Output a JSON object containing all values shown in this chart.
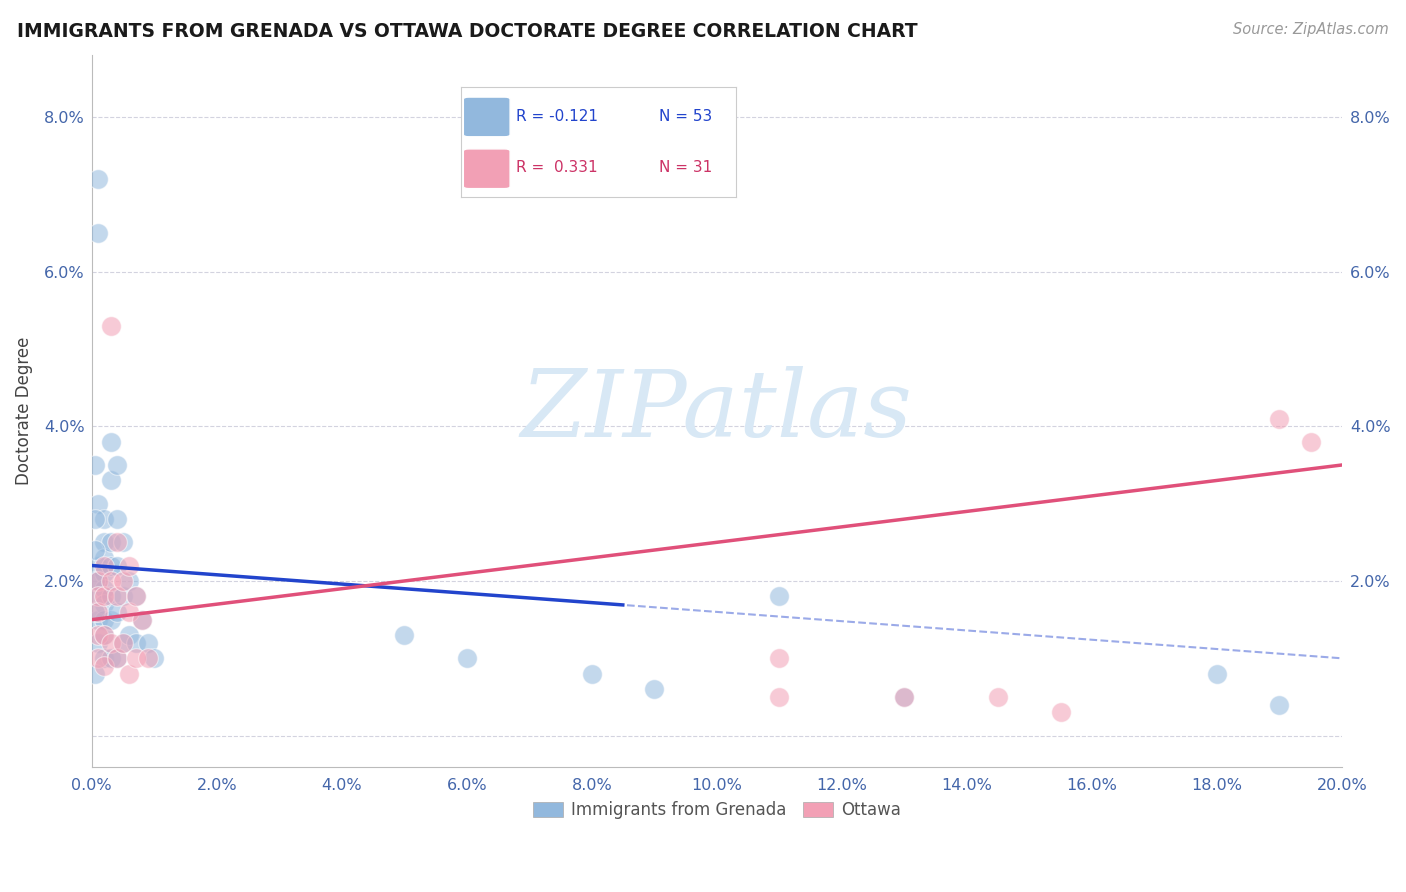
{
  "title": "IMMIGRANTS FROM GRENADA VS OTTAWA DOCTORATE DEGREE CORRELATION CHART",
  "source_text": "Source: ZipAtlas.com",
  "ylabel": "Doctorate Degree",
  "xlim": [
    0.0,
    0.2
  ],
  "ylim": [
    -0.004,
    0.088
  ],
  "xticks": [
    0.0,
    0.02,
    0.04,
    0.06,
    0.08,
    0.1,
    0.12,
    0.14,
    0.16,
    0.18,
    0.2
  ],
  "xticklabels": [
    "0.0%",
    "2.0%",
    "4.0%",
    "6.0%",
    "8.0%",
    "10.0%",
    "12.0%",
    "14.0%",
    "16.0%",
    "18.0%",
    "20.0%"
  ],
  "yticks": [
    0.0,
    0.02,
    0.04,
    0.06,
    0.08
  ],
  "yticklabels": [
    "",
    "2.0%",
    "4.0%",
    "6.0%",
    "8.0%"
  ],
  "blue_color": "#92b8dd",
  "pink_color": "#f2a0b5",
  "blue_line_color": "#2244cc",
  "pink_line_color": "#e0507a",
  "blue_line_y0": 0.022,
  "blue_line_y1": 0.01,
  "pink_line_y0": 0.015,
  "pink_line_y1": 0.035,
  "watermark": "ZIPatlas",
  "watermark_color": "#d8e8f5",
  "blue_scatter_x": [
    0.001,
    0.001,
    0.001,
    0.001,
    0.001,
    0.001,
    0.001,
    0.001,
    0.002,
    0.002,
    0.002,
    0.002,
    0.002,
    0.002,
    0.002,
    0.002,
    0.002,
    0.003,
    0.003,
    0.003,
    0.003,
    0.003,
    0.003,
    0.003,
    0.004,
    0.004,
    0.004,
    0.004,
    0.004,
    0.005,
    0.005,
    0.005,
    0.006,
    0.006,
    0.007,
    0.007,
    0.008,
    0.009,
    0.01,
    0.05,
    0.06,
    0.08,
    0.09,
    0.11,
    0.13,
    0.18,
    0.19,
    0.0005,
    0.0005,
    0.0005,
    0.0005,
    0.0005,
    0.0005
  ],
  "blue_scatter_y": [
    0.072,
    0.065,
    0.03,
    0.022,
    0.02,
    0.018,
    0.015,
    0.012,
    0.028,
    0.025,
    0.023,
    0.021,
    0.019,
    0.017,
    0.015,
    0.013,
    0.01,
    0.038,
    0.033,
    0.025,
    0.022,
    0.018,
    0.015,
    0.01,
    0.035,
    0.028,
    0.022,
    0.016,
    0.01,
    0.025,
    0.018,
    0.012,
    0.02,
    0.013,
    0.018,
    0.012,
    0.015,
    0.012,
    0.01,
    0.013,
    0.01,
    0.008,
    0.006,
    0.018,
    0.005,
    0.008,
    0.004,
    0.035,
    0.028,
    0.024,
    0.02,
    0.016,
    0.008
  ],
  "pink_scatter_x": [
    0.001,
    0.001,
    0.001,
    0.001,
    0.001,
    0.002,
    0.002,
    0.002,
    0.002,
    0.003,
    0.003,
    0.003,
    0.004,
    0.004,
    0.004,
    0.005,
    0.005,
    0.006,
    0.006,
    0.006,
    0.007,
    0.007,
    0.008,
    0.009,
    0.11,
    0.11,
    0.13,
    0.145,
    0.155,
    0.19,
    0.195
  ],
  "pink_scatter_y": [
    0.02,
    0.018,
    0.016,
    0.013,
    0.01,
    0.022,
    0.018,
    0.013,
    0.009,
    0.053,
    0.02,
    0.012,
    0.025,
    0.018,
    0.01,
    0.02,
    0.012,
    0.022,
    0.016,
    0.008,
    0.018,
    0.01,
    0.015,
    0.01,
    0.01,
    0.005,
    0.005,
    0.005,
    0.003,
    0.041,
    0.038
  ]
}
